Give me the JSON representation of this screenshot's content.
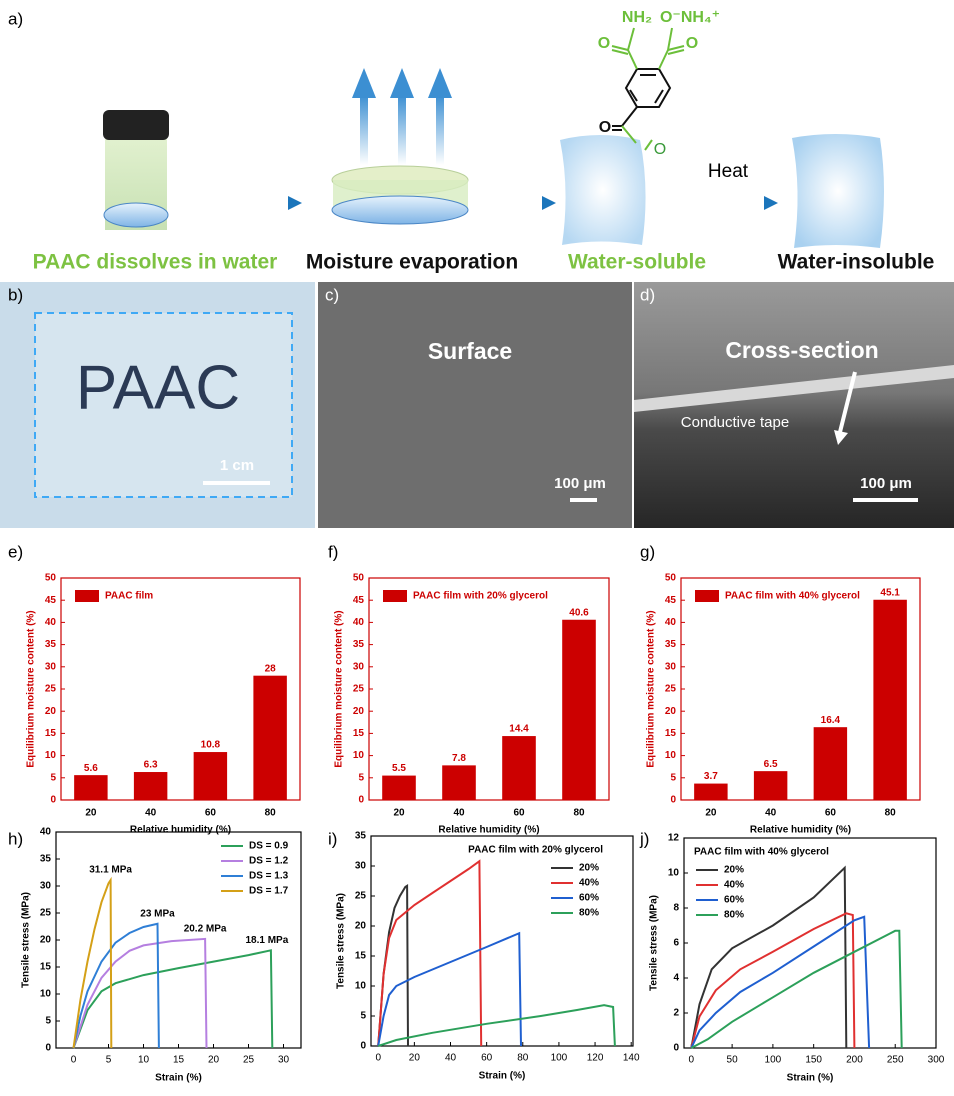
{
  "panel_a": {
    "label": "a)",
    "steps": [
      "PAAC dissolves in water",
      "Moisture evaporation",
      "Water-soluble",
      "Water-insoluble"
    ],
    "arrow_label": "Heat",
    "chem_labels": [
      "NH₂",
      "O⁻NH₄⁺",
      "O",
      "O",
      "O",
      "O"
    ]
  },
  "panel_b": {
    "label": "b)",
    "text": "PAAC",
    "scale": "1 cm"
  },
  "panel_c": {
    "label": "c)",
    "text": "Surface",
    "scale": "100 μm"
  },
  "panel_d": {
    "label": "d)",
    "text": "Cross-section",
    "annotation": "Conductive tape",
    "scale": "100 μm"
  },
  "chart_data": [
    {
      "type": "bar",
      "label": "e)",
      "xlabel": "Relative humidity (%)",
      "ylabel": "Equilibrium moisture content (%)",
      "axis_color": "#cc0000",
      "categories": [
        "20",
        "40",
        "60",
        "80"
      ],
      "series": [
        {
          "name": "PAAC film",
          "color": "#cc0000",
          "values": [
            5.6,
            6.3,
            10.8,
            28
          ]
        }
      ],
      "ylim": [
        0,
        50
      ],
      "yticks": [
        0,
        5,
        10,
        15,
        20,
        25,
        30,
        35,
        40,
        45,
        50
      ],
      "legend": "upper left"
    },
    {
      "type": "bar",
      "label": "f)",
      "xlabel": "Relative humidity (%)",
      "ylabel": "Equilibrium moisture content (%)",
      "axis_color": "#cc0000",
      "categories": [
        "20",
        "40",
        "60",
        "80"
      ],
      "series": [
        {
          "name": "PAAC film with 20% glycerol",
          "color": "#cc0000",
          "values": [
            5.5,
            7.8,
            14.4,
            40.6
          ]
        }
      ],
      "ylim": [
        0,
        50
      ],
      "yticks": [
        0,
        5,
        10,
        15,
        20,
        25,
        30,
        35,
        40,
        45,
        50
      ],
      "legend": "upper left"
    },
    {
      "type": "bar",
      "label": "g)",
      "xlabel": "Relative humidity (%)",
      "ylabel": "Equilibrium moisture content (%)",
      "axis_color": "#cc0000",
      "categories": [
        "20",
        "40",
        "60",
        "80"
      ],
      "series": [
        {
          "name": "PAAC film with 40% glycerol",
          "color": "#cc0000",
          "values": [
            3.7,
            6.5,
            16.4,
            45.1
          ]
        }
      ],
      "ylim": [
        0,
        50
      ],
      "yticks": [
        0,
        5,
        10,
        15,
        20,
        25,
        30,
        35,
        40,
        45,
        50
      ],
      "legend": "upper left"
    },
    {
      "type": "line",
      "label": "h)",
      "xlabel": "Strain (%)",
      "ylabel": "Tensile stress (MPa)",
      "axis_color": "#000000",
      "xlim": [
        -2.5,
        32.5
      ],
      "xticks": [
        0,
        5,
        10,
        15,
        20,
        25,
        30
      ],
      "ylim": [
        0,
        40
      ],
      "yticks": [
        0,
        5,
        10,
        15,
        20,
        25,
        30,
        35,
        40
      ],
      "legend": "upper right",
      "annotations": [
        "18.1 MPa",
        "20.2 MPa",
        "23 MPa",
        "31.1 MPa"
      ],
      "series": [
        {
          "name": "DS = 0.9",
          "color": "#2ca05a",
          "x": [
            0,
            2,
            4,
            6,
            10,
            15,
            20,
            25,
            28.2,
            28.4
          ],
          "values": [
            0,
            7,
            10.5,
            12,
            13.5,
            14.8,
            16,
            17.2,
            18.1,
            0
          ]
        },
        {
          "name": "DS = 1.2",
          "color": "#b57fe0",
          "x": [
            0,
            2,
            4,
            6,
            8,
            10,
            14,
            18.8,
            19
          ],
          "values": [
            0,
            8,
            13,
            16,
            18,
            19,
            19.8,
            20.2,
            0
          ]
        },
        {
          "name": "DS = 1.3",
          "color": "#2f7fd6",
          "x": [
            0,
            1,
            2,
            4,
            6,
            8,
            10,
            12,
            12.2
          ],
          "values": [
            0,
            6,
            10.5,
            16,
            19.5,
            21.3,
            22.4,
            23,
            0
          ]
        },
        {
          "name": "DS = 1.7",
          "color": "#d4a017",
          "x": [
            0,
            1,
            2,
            3,
            4,
            5,
            5.3,
            5.4
          ],
          "values": [
            0,
            9,
            16,
            22,
            27,
            30.5,
            31.1,
            0
          ]
        }
      ]
    },
    {
      "type": "line",
      "label": "i)",
      "xlabel": "Strain (%)",
      "ylabel": "Tensile stress (MPa)",
      "axis_color": "#000000",
      "xlim": [
        -4,
        141
      ],
      "xticks": [
        0,
        20,
        40,
        60,
        80,
        100,
        120,
        140
      ],
      "ylim": [
        0,
        35
      ],
      "yticks": [
        0,
        5,
        10,
        15,
        20,
        25,
        30,
        35
      ],
      "legend": "upper right",
      "legend_title": "PAAC film with 20% glycerol",
      "series": [
        {
          "name": "20%",
          "color": "#333333",
          "x": [
            0,
            3,
            6,
            9,
            12,
            15,
            16,
            16.5
          ],
          "values": [
            0,
            12,
            19,
            23,
            25,
            26.5,
            26.7,
            0
          ]
        },
        {
          "name": "40%",
          "color": "#e03030",
          "x": [
            0,
            3,
            6,
            10,
            20,
            30,
            40,
            50,
            56,
            57
          ],
          "values": [
            0,
            12,
            18,
            21,
            23.5,
            25.5,
            27.5,
            29.5,
            30.8,
            0
          ]
        },
        {
          "name": "60%",
          "color": "#1f5fd0",
          "x": [
            0,
            3,
            6,
            10,
            20,
            40,
            60,
            78,
            79
          ],
          "values": [
            0,
            5,
            8.5,
            10,
            11.5,
            14,
            16.5,
            18.8,
            0
          ]
        },
        {
          "name": "80%",
          "color": "#2ca05a",
          "x": [
            0,
            10,
            30,
            60,
            90,
            110,
            125,
            130,
            131
          ],
          "values": [
            0,
            1,
            2.2,
            3.7,
            5,
            6,
            6.8,
            6.5,
            0
          ]
        }
      ]
    },
    {
      "type": "line",
      "label": "j)",
      "xlabel": "Strain (%)",
      "ylabel": "Tensile stress (MPa)",
      "axis_color": "#000000",
      "xlim": [
        -9,
        300
      ],
      "xticks": [
        0,
        50,
        100,
        150,
        200,
        250,
        300
      ],
      "ylim": [
        0,
        12
      ],
      "yticks": [
        0,
        2,
        4,
        6,
        8,
        10,
        12
      ],
      "legend": "upper left",
      "legend_title": "PAAC film with 40% glycerol",
      "series": [
        {
          "name": "20%",
          "color": "#333333",
          "x": [
            0,
            10,
            25,
            50,
            100,
            150,
            188,
            190
          ],
          "values": [
            0,
            2.5,
            4.5,
            5.7,
            7,
            8.6,
            10.3,
            0
          ]
        },
        {
          "name": "40%",
          "color": "#e03030",
          "x": [
            0,
            10,
            30,
            60,
            100,
            150,
            190,
            198,
            200
          ],
          "values": [
            0,
            1.8,
            3.3,
            4.5,
            5.5,
            6.8,
            7.7,
            7.6,
            0
          ]
        },
        {
          "name": "60%",
          "color": "#1f5fd0",
          "x": [
            0,
            10,
            30,
            60,
            100,
            150,
            200,
            212,
            218
          ],
          "values": [
            0,
            1,
            2,
            3.2,
            4.3,
            5.8,
            7.3,
            7.5,
            0
          ]
        },
        {
          "name": "80%",
          "color": "#2ca05a",
          "x": [
            0,
            20,
            50,
            100,
            150,
            200,
            250,
            255,
            258
          ],
          "values": [
            0,
            0.5,
            1.5,
            2.9,
            4.3,
            5.5,
            6.7,
            6.7,
            0
          ]
        }
      ]
    }
  ]
}
